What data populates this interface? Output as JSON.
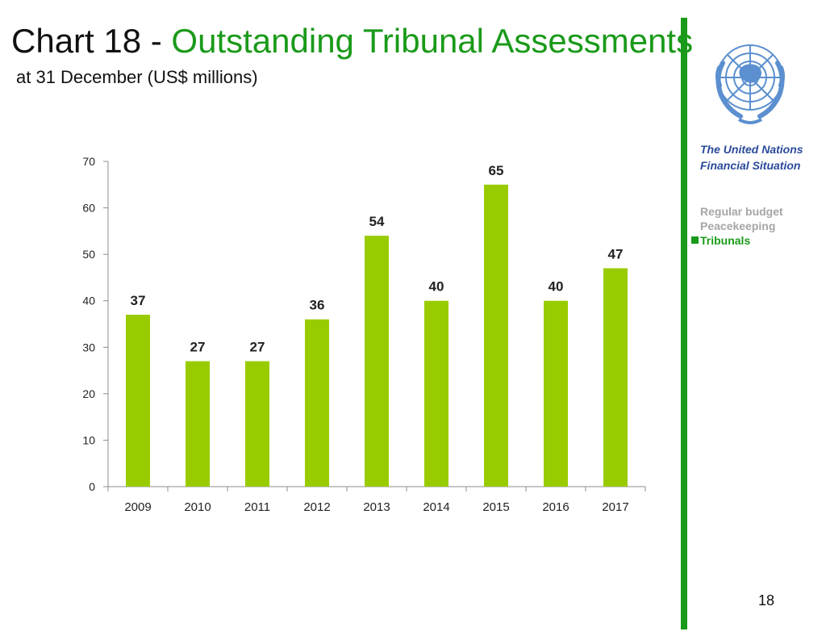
{
  "header": {
    "title_prefix": "Chart 18 - ",
    "title_accent": "Outstanding Tribunal Assessments",
    "subtitle": "at 31 December (US$ millions)"
  },
  "sidebar": {
    "publication": "The United Nations Financial Situation",
    "items": [
      {
        "label": "Regular budget",
        "active": false
      },
      {
        "label": "Peacekeeping",
        "active": false
      },
      {
        "label": "Tribunals",
        "active": true
      }
    ]
  },
  "page_number": "18",
  "colors": {
    "accent": "#1a9a1a",
    "bar": "#99cc00",
    "emblem": "#5b8fcf"
  },
  "chart_data": {
    "type": "bar",
    "categories": [
      "2009",
      "2010",
      "2011",
      "2012",
      "2013",
      "2014",
      "2015",
      "2016",
      "2017"
    ],
    "values": [
      37,
      27,
      27,
      36,
      54,
      40,
      65,
      40,
      47
    ],
    "data_labels": [
      "37",
      "27",
      "27",
      "36",
      "54",
      "40",
      "65",
      "40",
      "47"
    ],
    "ylim": [
      0,
      70
    ],
    "yticks": [
      0,
      10,
      20,
      30,
      40,
      50,
      60,
      70
    ],
    "grid": false,
    "legend": false
  }
}
